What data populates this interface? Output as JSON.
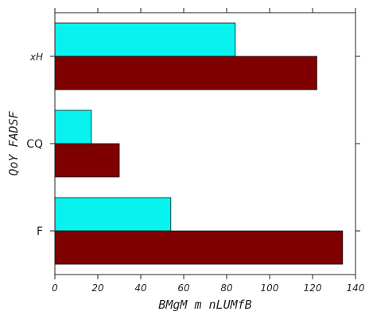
{
  "chart_data": {
    "type": "bar",
    "orientation": "horizontal",
    "categories": [
      "F",
      "CQ",
      "xH"
    ],
    "series": [
      {
        "values": [
          54,
          17,
          84
        ],
        "color": "#08f2f0"
      },
      {
        "values": [
          134,
          30,
          122
        ],
        "color": "#7f0000"
      }
    ],
    "xlabel": "BMgM m nLUMfB",
    "ylabel": "QoY FADSF",
    "xlim": [
      0,
      140
    ],
    "xticks": [
      "0",
      "20",
      "40",
      "60",
      "80",
      "100",
      "120",
      "140"
    ],
    "grid": false,
    "legend": "none"
  }
}
